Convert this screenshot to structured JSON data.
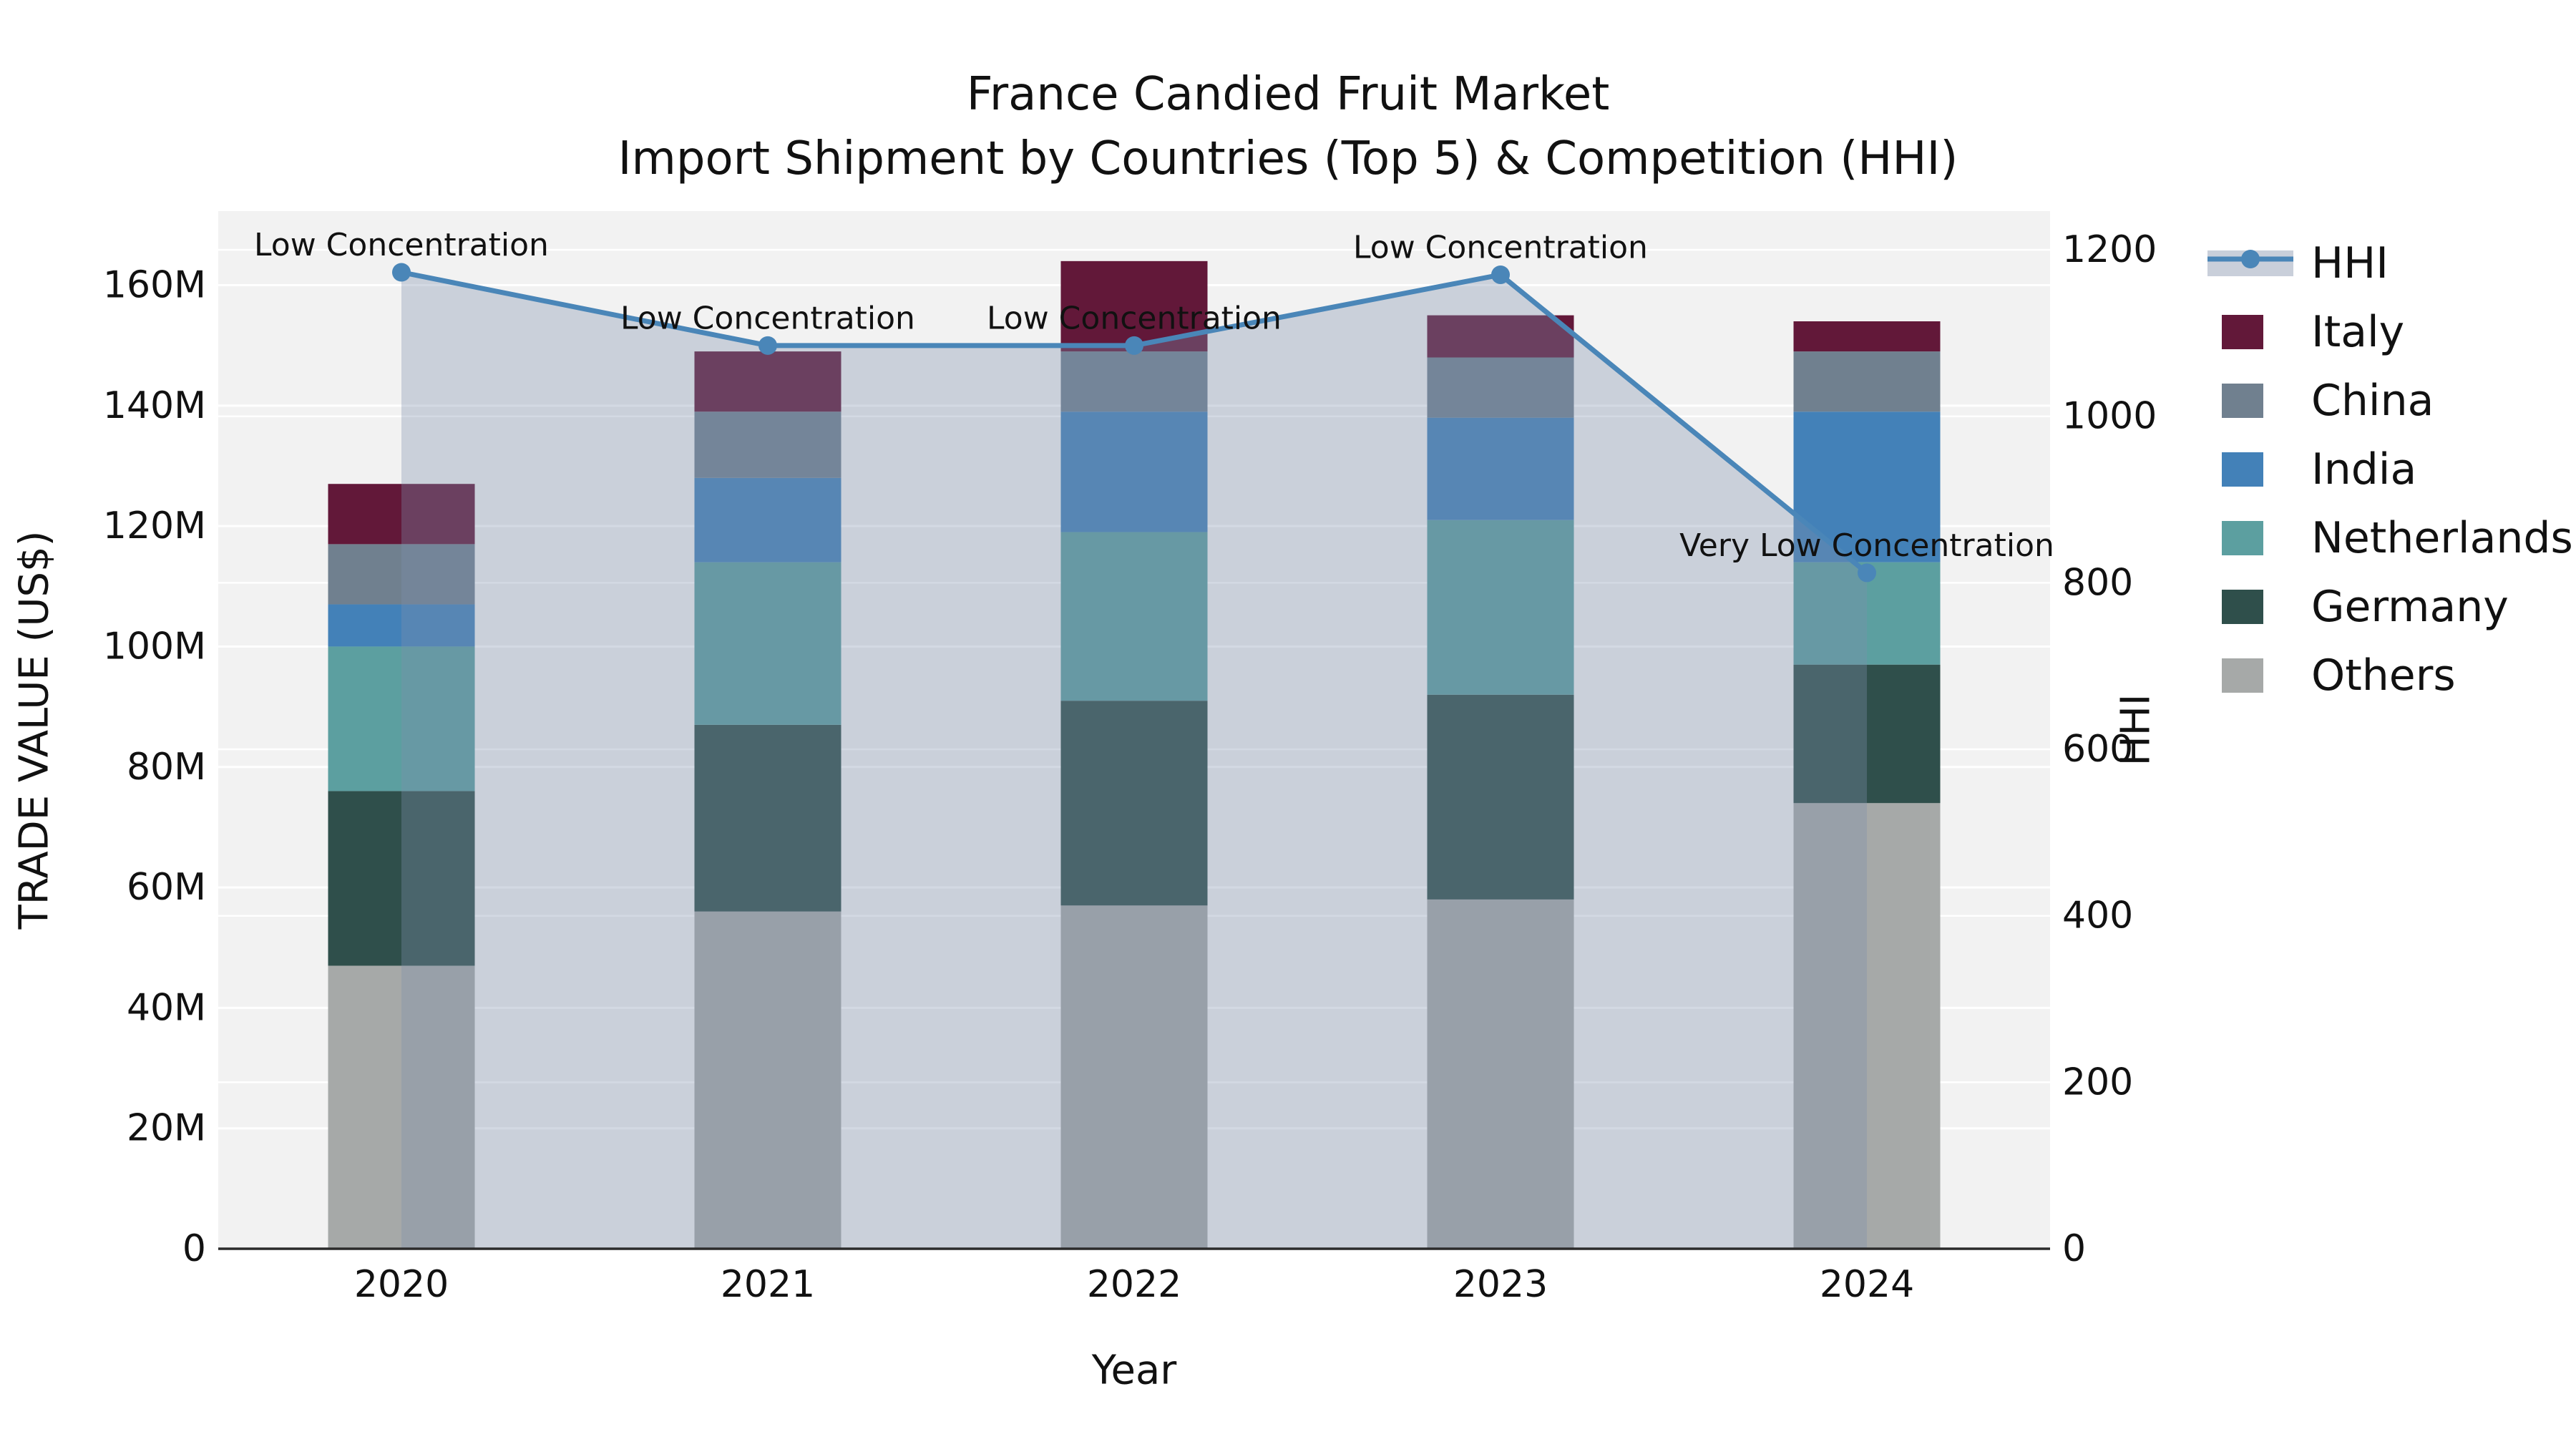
{
  "chart": {
    "title_line1": "France Candied Fruit Market",
    "title_line2": "Import Shipment by Countries (Top 5) & Competition (HHI)",
    "x_axis_label": "Year",
    "y_left_label": "TRADE VALUE (US$)",
    "y_right_label": "HHI"
  },
  "chart_data": {
    "type": "combo: stacked bar (trade value, left axis) + line with area fill (HHI, right axis)",
    "categories": [
      "2020",
      "2021",
      "2022",
      "2023",
      "2024"
    ],
    "stack_order_bottom_to_top": [
      "Others",
      "Germany",
      "Netherlands",
      "India",
      "China",
      "Italy"
    ],
    "series": [
      {
        "name": "Others",
        "color": "#a6a9a8",
        "values": [
          47,
          56,
          57,
          58,
          74
        ]
      },
      {
        "name": "Germany",
        "color": "#2f4f4b",
        "values": [
          29,
          31,
          34,
          34,
          23
        ]
      },
      {
        "name": "Netherlands",
        "color": "#5c9fa0",
        "values": [
          24,
          27,
          28,
          29,
          17
        ]
      },
      {
        "name": "India",
        "color": "#4381b8",
        "values": [
          7,
          14,
          20,
          17,
          25
        ]
      },
      {
        "name": "China",
        "color": "#70808f",
        "values": [
          10,
          11,
          10,
          10,
          10
        ]
      },
      {
        "name": "Italy",
        "color": "#621839",
        "values": [
          10,
          10,
          15,
          7,
          5
        ]
      }
    ],
    "bar_totals_musd": [
      127,
      149,
      164,
      155,
      154
    ],
    "values_unit": "M US$ (left axis, millions)",
    "hhi": {
      "name": "HHI",
      "line_color": "#4a86b8",
      "area_fill_color": "#7d8fad",
      "area_fill_opacity": 0.34,
      "values": [
        1173,
        1085,
        1085,
        1170,
        812
      ],
      "annotations": [
        "Low Concentration",
        "Low Concentration",
        "Low Concentration",
        "Low Concentration",
        "Very Low Concentration"
      ]
    },
    "y_left": {
      "label": "TRADE VALUE (US$)",
      "tick_labels": [
        "0",
        "20M",
        "40M",
        "60M",
        "80M",
        "100M",
        "120M",
        "140M",
        "160M"
      ],
      "tick_values": [
        0,
        20,
        40,
        60,
        80,
        100,
        120,
        140,
        160
      ],
      "axis_max": 172.3
    },
    "y_right": {
      "label": "HHI",
      "tick_labels": [
        "0",
        "200",
        "400",
        "600",
        "800",
        "1000",
        "1200"
      ],
      "tick_values": [
        0,
        200,
        400,
        600,
        800,
        1000,
        1200
      ],
      "axis_max": 1246.5
    },
    "x_label": "Year",
    "grid": "on (white gridlines on light-gray plot background, both axes)",
    "legend": {
      "position": "right",
      "items": [
        "HHI",
        "Italy",
        "China",
        "India",
        "Netherlands",
        "Germany",
        "Others"
      ],
      "hhi_key_band_color": "#c9cfda"
    },
    "style": {
      "plot_bg": "#f2f2f2",
      "grid_color": "#ffffff",
      "axis_line_color": "#2b2b2b",
      "text_color": "#111111"
    }
  }
}
